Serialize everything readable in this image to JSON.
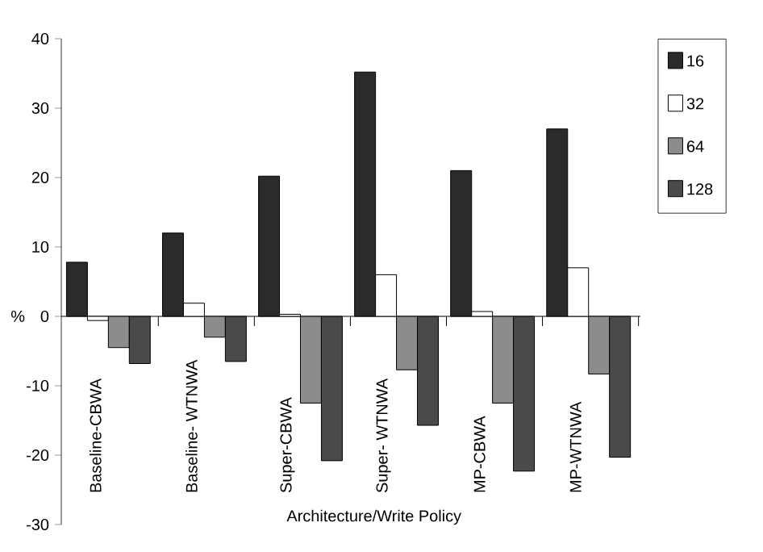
{
  "chart_data": {
    "type": "bar",
    "xlabel": "Architecture/Write Policy",
    "ylabel": "%",
    "categories": [
      "Baseline-CBWA",
      "Baseline- WTNWA",
      "Super-CBWA",
      "Super- WTNWA",
      "MP-CBWA",
      "MP-WTNWA"
    ],
    "series": [
      {
        "name": "16",
        "color": "#2b2b2b",
        "values": [
          7.8,
          12,
          20.2,
          35.2,
          21,
          27
        ]
      },
      {
        "name": "32",
        "color": "#ffffff",
        "values": [
          -0.6,
          1.9,
          0.3,
          6,
          0.7,
          7
        ]
      },
      {
        "name": "64",
        "color": "#8c8c8c",
        "values": [
          -4.5,
          -3,
          -12.5,
          -7.7,
          -12.5,
          -8.3
        ]
      },
      {
        "name": "128",
        "color": "#4a4a4a",
        "values": [
          -6.8,
          -6.5,
          -20.8,
          -15.7,
          -22.3,
          -20.3
        ]
      }
    ],
    "ylim": [
      -30,
      40
    ],
    "yticks": [
      -30,
      -20,
      -10,
      0,
      10,
      20,
      30,
      40
    ],
    "legend": "right"
  }
}
